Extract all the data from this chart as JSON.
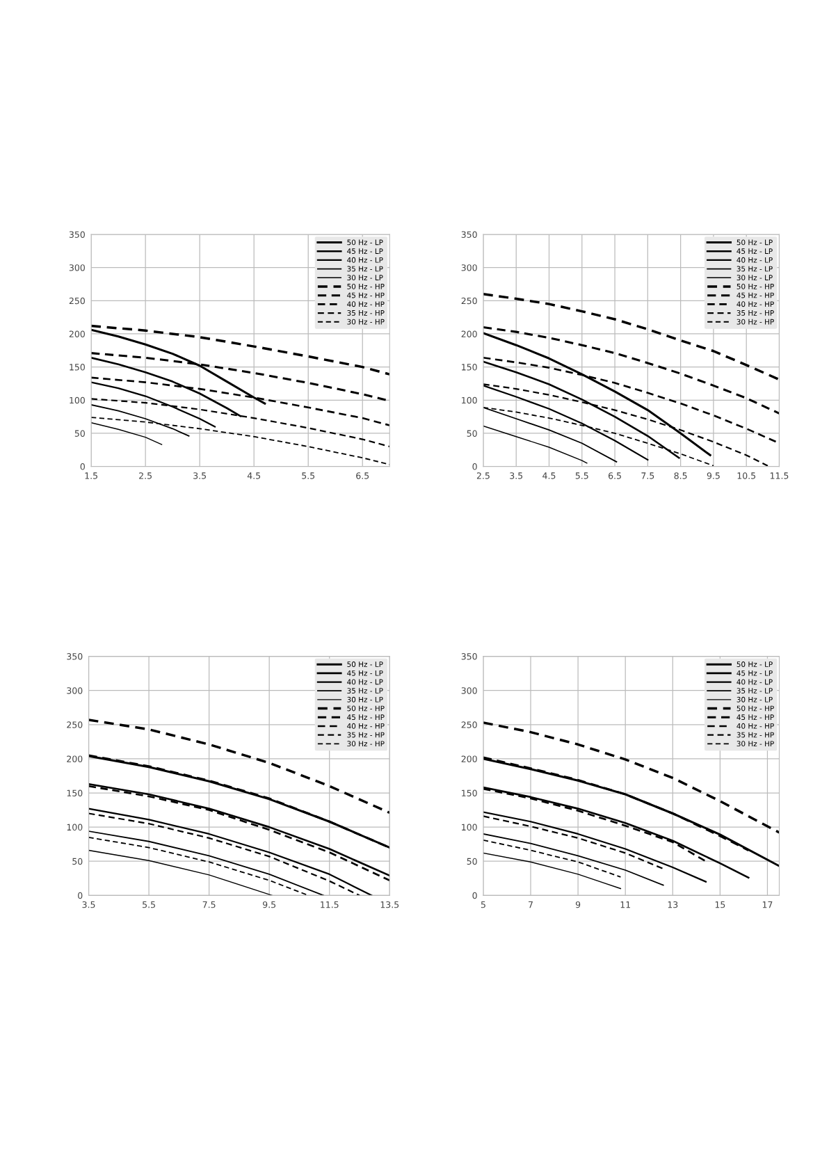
{
  "chart_data": [
    {
      "type": "line",
      "xlim": [
        1.5,
        7.0
      ],
      "xticks": [
        1.5,
        2.5,
        3.5,
        4.5,
        5.5,
        6.5
      ],
      "ylim": [
        0,
        350
      ],
      "yticks": [
        0,
        50,
        100,
        150,
        200,
        250,
        300,
        350
      ],
      "grid": true,
      "legend": "top right",
      "series": [
        {
          "name": "50 Hz - LP",
          "color": "#000000",
          "line_style": "solid",
          "x": [
            1.5,
            2.0,
            2.5,
            3.0,
            3.5,
            4.0,
            4.5,
            4.7
          ],
          "values": [
            206,
            196,
            184,
            170,
            152,
            128,
            104,
            95
          ]
        },
        {
          "name": "45 Hz - LP",
          "color": "#000000",
          "line_style": "solid",
          "x": [
            1.5,
            2.0,
            2.5,
            3.0,
            3.5,
            4.0,
            4.25
          ],
          "values": [
            164,
            154,
            142,
            128,
            110,
            88,
            76
          ]
        },
        {
          "name": "40 Hz - LP",
          "color": "#000000",
          "line_style": "solid",
          "x": [
            1.5,
            2.0,
            2.5,
            3.0,
            3.5,
            3.78
          ],
          "values": [
            127,
            118,
            106,
            90,
            72,
            60
          ]
        },
        {
          "name": "35 Hz - LP",
          "color": "#000000",
          "line_style": "solid",
          "x": [
            1.5,
            2.0,
            2.5,
            3.0,
            3.3
          ],
          "values": [
            93,
            84,
            72,
            57,
            46
          ]
        },
        {
          "name": "30 Hz - LP",
          "color": "#000000",
          "line_style": "solid",
          "x": [
            1.5,
            2.0,
            2.5,
            2.8
          ],
          "values": [
            66,
            56,
            44,
            33
          ]
        },
        {
          "name": "50 Hz - HP",
          "color": "#000000",
          "line_style": "dashed",
          "x": [
            1.5,
            2.5,
            3.5,
            4.5,
            5.5,
            6.5,
            7.0
          ],
          "values": [
            212,
            205,
            195,
            181,
            166,
            150,
            139
          ]
        },
        {
          "name": "45 Hz - HP",
          "color": "#000000",
          "line_style": "dashed",
          "x": [
            1.5,
            2.5,
            3.5,
            4.5,
            5.5,
            6.5,
            7.0
          ],
          "values": [
            171,
            164,
            154,
            141,
            126,
            109,
            99
          ]
        },
        {
          "name": "40 Hz - HP",
          "color": "#000000",
          "line_style": "dashed",
          "x": [
            1.5,
            2.5,
            3.5,
            4.5,
            5.5,
            6.5,
            7.0
          ],
          "values": [
            134,
            127,
            117,
            104,
            89,
            73,
            62
          ]
        },
        {
          "name": "35 Hz - HP",
          "color": "#000000",
          "line_style": "dashed",
          "x": [
            1.5,
            2.5,
            3.5,
            4.5,
            5.5,
            6.5,
            7.0
          ],
          "values": [
            102,
            96,
            86,
            73,
            58,
            41,
            30
          ]
        },
        {
          "name": "30 Hz - HP",
          "color": "#000000",
          "line_style": "dashed",
          "x": [
            1.5,
            2.5,
            3.5,
            4.5,
            5.5,
            6.5,
            7.0
          ],
          "values": [
            74,
            67,
            57,
            45,
            30,
            13,
            3
          ]
        }
      ]
    },
    {
      "type": "line",
      "xlim": [
        2.5,
        11.5
      ],
      "xticks": [
        2.5,
        3.5,
        4.5,
        5.5,
        6.5,
        7.5,
        8.5,
        9.5,
        10.5,
        11.5
      ],
      "ylim": [
        0,
        350
      ],
      "yticks": [
        0,
        50,
        100,
        150,
        200,
        250,
        300,
        350
      ],
      "grid": true,
      "legend": "top right",
      "series": [
        {
          "name": "50 Hz - LP",
          "color": "#000000",
          "line_style": "solid",
          "x": [
            2.5,
            3.5,
            4.5,
            5.5,
            6.5,
            7.5,
            8.5,
            9.4
          ],
          "values": [
            201,
            183,
            163,
            139,
            113,
            85,
            50,
            17
          ]
        },
        {
          "name": "45 Hz - LP",
          "color": "#000000",
          "line_style": "solid",
          "x": [
            2.5,
            3.5,
            4.5,
            5.5,
            6.5,
            7.5,
            8.45
          ],
          "values": [
            158,
            142,
            124,
            101,
            75,
            46,
            13
          ]
        },
        {
          "name": "40 Hz - LP",
          "color": "#000000",
          "line_style": "solid",
          "x": [
            2.5,
            3.5,
            4.5,
            5.5,
            6.5,
            7.5
          ],
          "values": [
            122,
            105,
            87,
            65,
            39,
            10
          ]
        },
        {
          "name": "35 Hz - LP",
          "color": "#000000",
          "line_style": "solid",
          "x": [
            2.5,
            3.5,
            4.5,
            5.5,
            6.55
          ],
          "values": [
            89,
            72,
            55,
            35,
            7
          ]
        },
        {
          "name": "30 Hz - LP",
          "color": "#000000",
          "line_style": "solid",
          "x": [
            2.5,
            3.5,
            4.5,
            5.5,
            5.65
          ],
          "values": [
            61,
            45,
            29,
            9,
            5
          ]
        },
        {
          "name": "50 Hz - HP",
          "color": "#000000",
          "line_style": "dashed",
          "x": [
            2.5,
            3.5,
            4.5,
            5.5,
            6.5,
            7.5,
            8.5,
            9.5,
            10.5,
            11.5
          ],
          "values": [
            260,
            253,
            245,
            234,
            222,
            207,
            190,
            174,
            153,
            131
          ]
        },
        {
          "name": "45 Hz - HP",
          "color": "#000000",
          "line_style": "dashed",
          "x": [
            2.5,
            3.5,
            4.5,
            5.5,
            6.5,
            7.5,
            8.5,
            9.5,
            10.5,
            11.5
          ],
          "values": [
            210,
            203,
            194,
            183,
            171,
            156,
            140,
            122,
            103,
            80
          ]
        },
        {
          "name": "40 Hz - HP",
          "color": "#000000",
          "line_style": "dashed",
          "x": [
            2.5,
            3.5,
            4.5,
            5.5,
            6.5,
            7.5,
            8.5,
            9.5,
            10.5,
            11.5
          ],
          "values": [
            164,
            157,
            149,
            138,
            126,
            111,
            95,
            77,
            57,
            35
          ]
        },
        {
          "name": "35 Hz - HP",
          "color": "#000000",
          "line_style": "dashed",
          "x": [
            2.5,
            3.5,
            4.5,
            5.5,
            6.5,
            7.5,
            8.5,
            9.5,
            10.5,
            11.15
          ],
          "values": [
            124,
            117,
            108,
            97,
            85,
            71,
            55,
            37,
            17,
            1
          ]
        },
        {
          "name": "30 Hz - HP",
          "color": "#000000",
          "line_style": "dashed",
          "x": [
            2.5,
            3.5,
            4.5,
            5.5,
            6.5,
            7.5,
            8.5,
            9.5
          ],
          "values": [
            89,
            82,
            73,
            62,
            50,
            35,
            19,
            1
          ]
        }
      ]
    },
    {
      "type": "line",
      "xlim": [
        3.5,
        13.5
      ],
      "xticks": [
        3.5,
        5.5,
        7.5,
        9.5,
        11.5,
        13.5
      ],
      "ylim": [
        0,
        350
      ],
      "yticks": [
        0,
        50,
        100,
        150,
        200,
        250,
        300,
        350
      ],
      "grid": true,
      "legend": "top right",
      "series": [
        {
          "name": "50 Hz - LP",
          "color": "#000000",
          "line_style": "solid",
          "x": [
            3.5,
            5.5,
            7.5,
            9.5,
            11.5,
            13.5
          ],
          "values": [
            204,
            188,
            167,
            141,
            108,
            70
          ]
        },
        {
          "name": "45 Hz - LP",
          "color": "#000000",
          "line_style": "solid",
          "x": [
            3.5,
            5.5,
            7.5,
            9.5,
            11.5,
            13.5
          ],
          "values": [
            163,
            148,
            127,
            100,
            68,
            29
          ]
        },
        {
          "name": "40 Hz - LP",
          "color": "#000000",
          "line_style": "solid",
          "x": [
            3.5,
            5.5,
            7.5,
            9.5,
            11.5,
            12.9
          ],
          "values": [
            127,
            111,
            90,
            63,
            31,
            0
          ]
        },
        {
          "name": "35 Hz - LP",
          "color": "#000000",
          "line_style": "solid",
          "x": [
            3.5,
            5.5,
            7.5,
            9.5,
            11.3
          ],
          "values": [
            94,
            79,
            58,
            31,
            0
          ]
        },
        {
          "name": "30 Hz - LP",
          "color": "#000000",
          "line_style": "solid",
          "x": [
            3.5,
            5.5,
            7.5,
            9.6
          ],
          "values": [
            66,
            51,
            30,
            0
          ]
        },
        {
          "name": "50 Hz - HP",
          "color": "#000000",
          "line_style": "dashed",
          "x": [
            3.5,
            5.5,
            7.5,
            9.5,
            11.5,
            13.5
          ],
          "values": [
            257,
            243,
            221,
            194,
            160,
            121
          ]
        },
        {
          "name": "45 Hz - HP",
          "color": "#000000",
          "line_style": "dashed",
          "x": [
            3.5,
            5.5,
            7.5,
            9.5,
            11.5,
            13.5
          ],
          "values": [
            205,
            189,
            168,
            142,
            108,
            70
          ]
        },
        {
          "name": "40 Hz - HP",
          "color": "#000000",
          "line_style": "dashed",
          "x": [
            3.5,
            5.5,
            7.5,
            9.5,
            11.5,
            13.5
          ],
          "values": [
            160,
            145,
            125,
            96,
            63,
            22
          ]
        },
        {
          "name": "35 Hz - HP",
          "color": "#000000",
          "line_style": "dashed",
          "x": [
            3.5,
            5.5,
            7.5,
            9.5,
            11.5,
            12.5
          ],
          "values": [
            120,
            105,
            84,
            57,
            21,
            0
          ]
        },
        {
          "name": "30 Hz - HP",
          "color": "#000000",
          "line_style": "dashed",
          "x": [
            3.5,
            5.5,
            7.5,
            9.5,
            10.8
          ],
          "values": [
            85,
            70,
            49,
            22,
            0
          ]
        }
      ]
    },
    {
      "type": "line",
      "xlim": [
        5,
        17.5
      ],
      "xticks": [
        5,
        7,
        9,
        11,
        13,
        15,
        17
      ],
      "ylim": [
        0,
        350
      ],
      "yticks": [
        0,
        50,
        100,
        150,
        200,
        250,
        300,
        350
      ],
      "grid": true,
      "legend": "top right",
      "series": [
        {
          "name": "50 Hz - LP",
          "color": "#000000",
          "line_style": "solid",
          "x": [
            5,
            7,
            9,
            11,
            13,
            15,
            17.5
          ],
          "values": [
            200,
            185,
            168,
            148,
            120,
            89,
            43
          ]
        },
        {
          "name": "45 Hz - LP",
          "color": "#000000",
          "line_style": "solid",
          "x": [
            5,
            7,
            9,
            11,
            13,
            15,
            16.2
          ],
          "values": [
            158,
            144,
            127,
            106,
            80,
            47,
            26
          ]
        },
        {
          "name": "40 Hz - LP",
          "color": "#000000",
          "line_style": "solid",
          "x": [
            5,
            7,
            9,
            11,
            13,
            14.4
          ],
          "values": [
            122,
            108,
            90,
            68,
            41,
            20
          ]
        },
        {
          "name": "35 Hz - LP",
          "color": "#000000",
          "line_style": "solid",
          "x": [
            5,
            7,
            9,
            11,
            12.6
          ],
          "values": [
            90,
            76,
            58,
            37,
            15
          ]
        },
        {
          "name": "30 Hz - LP",
          "color": "#000000",
          "line_style": "solid",
          "x": [
            5,
            7,
            9,
            10.8
          ],
          "values": [
            62,
            49,
            31,
            10
          ]
        },
        {
          "name": "50 Hz - HP",
          "color": "#000000",
          "line_style": "dashed",
          "x": [
            5,
            7,
            9,
            11,
            13,
            15,
            17.5
          ],
          "values": [
            253,
            239,
            221,
            199,
            172,
            138,
            92
          ]
        },
        {
          "name": "45 Hz - HP",
          "color": "#000000",
          "line_style": "dashed",
          "x": [
            5,
            7,
            9,
            11,
            13,
            15,
            16.2
          ],
          "values": [
            202,
            186,
            169,
            148,
            120,
            87,
            66
          ]
        },
        {
          "name": "40 Hz - HP",
          "color": "#000000",
          "line_style": "dashed",
          "x": [
            5,
            7,
            9,
            11,
            13,
            14.4
          ],
          "values": [
            156,
            142,
            124,
            102,
            78,
            50
          ]
        },
        {
          "name": "35 Hz - HP",
          "color": "#000000",
          "line_style": "dashed",
          "x": [
            5,
            7,
            9,
            11,
            12.6
          ],
          "values": [
            116,
            101,
            84,
            62,
            39
          ]
        },
        {
          "name": "30 Hz - HP",
          "color": "#000000",
          "line_style": "dashed",
          "x": [
            5,
            7,
            9,
            10.8
          ],
          "values": [
            81,
            66,
            49,
            27
          ]
        }
      ]
    }
  ]
}
